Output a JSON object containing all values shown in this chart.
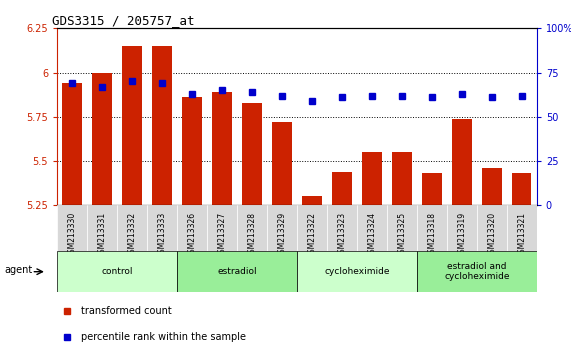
{
  "title": "GDS3315 / 205757_at",
  "samples": [
    "GSM213330",
    "GSM213331",
    "GSM213332",
    "GSM213333",
    "GSM213326",
    "GSM213327",
    "GSM213328",
    "GSM213329",
    "GSM213322",
    "GSM213323",
    "GSM213324",
    "GSM213325",
    "GSM213318",
    "GSM213319",
    "GSM213320",
    "GSM213321"
  ],
  "bar_values": [
    5.94,
    6.0,
    6.15,
    6.15,
    5.86,
    5.89,
    5.83,
    5.72,
    5.3,
    5.44,
    5.55,
    5.55,
    5.43,
    5.74,
    5.46,
    5.43
  ],
  "dot_values": [
    69,
    67,
    70,
    69,
    63,
    65,
    64,
    62,
    59,
    61,
    62,
    62,
    61,
    63,
    61,
    62
  ],
  "bar_color": "#cc2200",
  "dot_color": "#0000cc",
  "ylim_left": [
    5.25,
    6.25
  ],
  "ylim_right": [
    0,
    100
  ],
  "yticks_left": [
    5.25,
    5.5,
    5.75,
    6.0,
    6.25
  ],
  "yticks_right": [
    0,
    25,
    50,
    75,
    100
  ],
  "ytick_labels_left": [
    "5.25",
    "5.5",
    "5.75",
    "6",
    "6.25"
  ],
  "ytick_labels_right": [
    "0",
    "25",
    "50",
    "75",
    "100%"
  ],
  "groups": [
    {
      "label": "control",
      "start": 0,
      "end": 4,
      "color": "#ccffcc"
    },
    {
      "label": "estradiol",
      "start": 4,
      "end": 8,
      "color": "#99ee99"
    },
    {
      "label": "cycloheximide",
      "start": 8,
      "end": 12,
      "color": "#ccffcc"
    },
    {
      "label": "estradiol and\ncycloheximide",
      "start": 12,
      "end": 16,
      "color": "#99ee99"
    }
  ],
  "legend_bar_label": "transformed count",
  "legend_dot_label": "percentile rank within the sample",
  "agent_label": "agent",
  "bar_bottom": 5.25,
  "grid_yticks": [
    5.5,
    5.75,
    6.0
  ],
  "sample_box_color": "#d8d8d8",
  "spine_color": "#888888"
}
